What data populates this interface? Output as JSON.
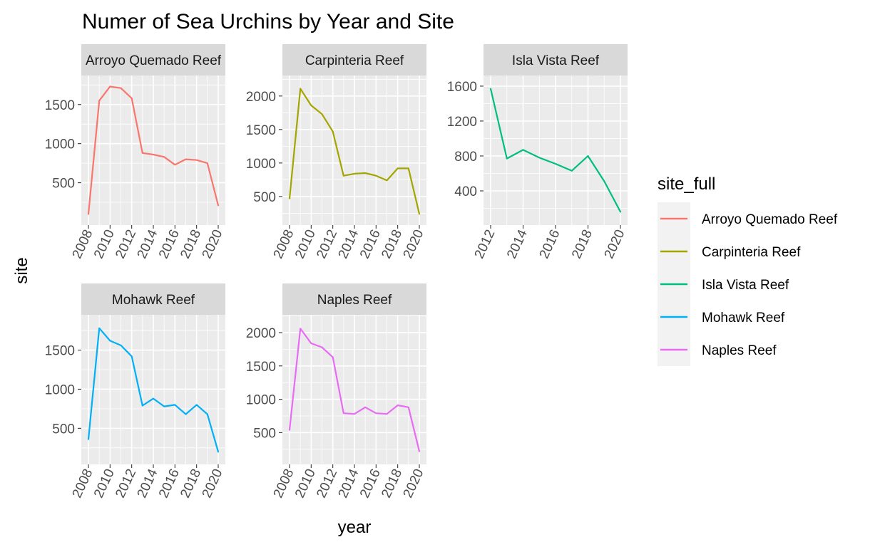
{
  "title": "Numer of Sea Urchins by Year and Site",
  "xlabel": "year",
  "ylabel": "site",
  "legend": {
    "title": "site_full",
    "position": "right",
    "items": [
      {
        "label": "Arroyo Quemado Reef",
        "color": "#F8766D"
      },
      {
        "label": "Carpinteria Reef",
        "color": "#A3A500"
      },
      {
        "label": "Isla Vista Reef",
        "color": "#00BF7D"
      },
      {
        "label": "Mohawk Reef",
        "color": "#00B0F6"
      },
      {
        "label": "Naples Reef",
        "color": "#E76BF3"
      }
    ]
  },
  "chart_data": {
    "type": "line",
    "title": "Numer of Sea Urchins by Year and Site",
    "xlabel": "year",
    "ylabel": "site",
    "grid": true,
    "facets": [
      {
        "strip": "Arroyo Quemado Reef",
        "color": "#F8766D",
        "x": [
          2008,
          2009,
          2010,
          2011,
          2012,
          2013,
          2014,
          2015,
          2016,
          2017,
          2018,
          2019,
          2020
        ],
        "y": [
          100,
          1550,
          1730,
          1710,
          1580,
          880,
          860,
          830,
          730,
          800,
          790,
          750,
          210
        ],
        "xlim": [
          2008,
          2020
        ],
        "ylim": [
          50,
          1780
        ],
        "x_ticks": [
          2008,
          2010,
          2012,
          2014,
          2016,
          2018,
          2020
        ],
        "y_ticks": [
          500,
          1000,
          1500
        ]
      },
      {
        "strip": "Carpinteria Reef",
        "color": "#A3A500",
        "x": [
          2008,
          2009,
          2010,
          2011,
          2012,
          2013,
          2014,
          2015,
          2016,
          2017,
          2018,
          2019,
          2020
        ],
        "y": [
          470,
          2110,
          1860,
          1730,
          1470,
          810,
          840,
          850,
          810,
          740,
          920,
          920,
          240
        ],
        "xlim": [
          2008,
          2020
        ],
        "ylim": [
          180,
          2200
        ],
        "x_ticks": [
          2008,
          2010,
          2012,
          2014,
          2016,
          2018,
          2020
        ],
        "y_ticks": [
          500,
          1000,
          1500,
          2000
        ]
      },
      {
        "strip": "Isla Vista Reef",
        "color": "#00BF7D",
        "x": [
          2012,
          2013,
          2014,
          2015,
          2016,
          2017,
          2018,
          2019,
          2020
        ],
        "y": [
          1570,
          770,
          870,
          780,
          710,
          630,
          800,
          510,
          160
        ],
        "xlim": [
          2012,
          2020
        ],
        "ylim": [
          90,
          1640
        ],
        "x_ticks": [
          2012,
          2014,
          2016,
          2018,
          2020
        ],
        "y_ticks": [
          400,
          800,
          1200,
          1600
        ]
      },
      {
        "strip": "Mohawk Reef",
        "color": "#00B0F6",
        "x": [
          2008,
          2009,
          2010,
          2011,
          2012,
          2013,
          2014,
          2015,
          2016,
          2017,
          2018,
          2019,
          2020
        ],
        "y": [
          360,
          1780,
          1620,
          1560,
          1420,
          790,
          880,
          780,
          800,
          680,
          800,
          680,
          200
        ],
        "xlim": [
          2008,
          2020
        ],
        "ylim": [
          130,
          1860
        ],
        "x_ticks": [
          2008,
          2010,
          2012,
          2014,
          2016,
          2018,
          2020
        ],
        "y_ticks": [
          500,
          1000,
          1500
        ]
      },
      {
        "strip": "Naples Reef",
        "color": "#E76BF3",
        "x": [
          2008,
          2009,
          2010,
          2011,
          2012,
          2013,
          2014,
          2015,
          2016,
          2017,
          2018,
          2019,
          2020
        ],
        "y": [
          540,
          2060,
          1840,
          1780,
          1630,
          790,
          780,
          880,
          790,
          780,
          910,
          880,
          220
        ],
        "xlim": [
          2008,
          2020
        ],
        "ylim": [
          130,
          2160
        ],
        "x_ticks": [
          2008,
          2010,
          2012,
          2014,
          2016,
          2018,
          2020
        ],
        "y_ticks": [
          500,
          1000,
          1500,
          2000
        ]
      }
    ]
  }
}
